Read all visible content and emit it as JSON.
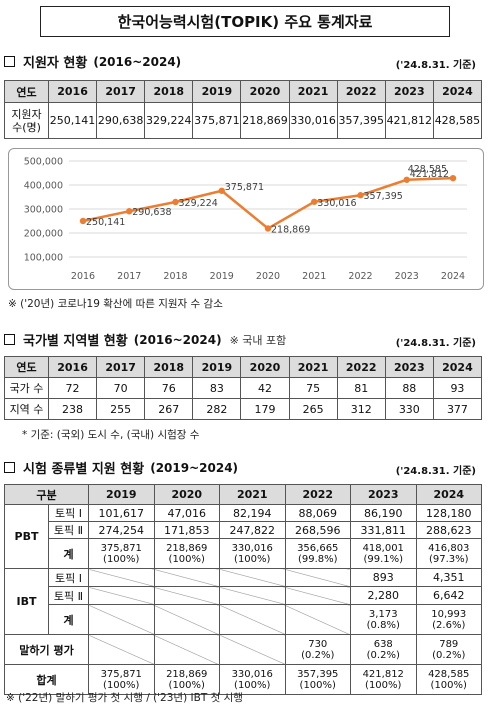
{
  "title": "한국어능력시험(TOPIK) 주요 통계자료",
  "section1": {
    "heading": "지원자 현황",
    "period": "(2016~2024)",
    "asof": "('24.8.31. 기준)",
    "table": {
      "header": [
        "연도",
        "2016",
        "2017",
        "2018",
        "2019",
        "2020",
        "2021",
        "2022",
        "2023",
        "2024"
      ],
      "row_label": "지원자 수(명)",
      "values": [
        "250,141",
        "290,638",
        "329,224",
        "375,871",
        "218,869",
        "330,016",
        "357,395",
        "421,812",
        "428,585"
      ]
    },
    "footnote": "※ ('20년) 코로나19 확산에 따른 지원자 수 감소"
  },
  "chart_data": {
    "type": "line",
    "categories": [
      "2016",
      "2017",
      "2018",
      "2019",
      "2020",
      "2021",
      "2022",
      "2023",
      "2024"
    ],
    "series": [
      {
        "values": [
          250141,
          290638,
          329224,
          375871,
          218869,
          330016,
          357395,
          421812,
          428585
        ]
      }
    ],
    "data_labels": [
      "250,141",
      "290,638",
      "329,224",
      "375,871",
      "218,869",
      "330,016",
      "357,395",
      "421,812",
      "428,585"
    ],
    "yticks": [
      "100,000",
      "200,000",
      "300,000",
      "400,000",
      "500,000"
    ],
    "ylim": [
      100000,
      500000
    ],
    "grid": true,
    "line_color": "#ED7D31"
  },
  "section2": {
    "heading": "국가별 지역별 현황",
    "period": "(2016~2024)",
    "note": "※ 국내 포함",
    "asof": "('24.8.31. 기준)",
    "table": {
      "header": [
        "연도",
        "2016",
        "2017",
        "2018",
        "2019",
        "2020",
        "2021",
        "2022",
        "2023",
        "2024"
      ],
      "rows": [
        {
          "label": "국가 수",
          "values": [
            "72",
            "70",
            "76",
            "83",
            "42",
            "75",
            "81",
            "88",
            "93"
          ]
        },
        {
          "label": "지역 수",
          "values": [
            "238",
            "255",
            "267",
            "282",
            "179",
            "265",
            "312",
            "330",
            "377"
          ]
        }
      ]
    },
    "footnote": "* 기준: (국외) 도시 수, (국내) 시험장 수"
  },
  "section3": {
    "heading": "시험 종류별 지원 현황",
    "period": "(2019~2024)",
    "asof": "('24.8.31. 기준)",
    "header": [
      "구분",
      "2019",
      "2020",
      "2021",
      "2022",
      "2023",
      "2024"
    ],
    "pbt": {
      "label": "PBT",
      "rows": [
        {
          "label": "토픽 Ⅰ",
          "values": [
            "101,617",
            "47,016",
            "82,194",
            "88,069",
            "86,190",
            "128,180"
          ]
        },
        {
          "label": "토픽 Ⅱ",
          "values": [
            "274,254",
            "171,853",
            "247,822",
            "268,596",
            "331,811",
            "288,623"
          ]
        }
      ],
      "total_label": "계",
      "totals": [
        "375,871",
        "218,869",
        "330,016",
        "356,665",
        "418,001",
        "416,803"
      ],
      "totals_pct": [
        "(100%)",
        "(100%)",
        "(100%)",
        "(99.8%)",
        "(99.1%)",
        "(97.3%)"
      ]
    },
    "ibt": {
      "label": "IBT",
      "rows": [
        {
          "label": "토픽 Ⅰ",
          "values": [
            "893",
            "4,351"
          ]
        },
        {
          "label": "토픽 Ⅱ",
          "values": [
            "2,280",
            "6,642"
          ]
        }
      ],
      "total_label": "계",
      "totals": [
        "3,173",
        "10,993"
      ],
      "totals_pct": [
        "(0.8%)",
        "(2.6%)"
      ]
    },
    "speaking": {
      "label": "말하기 평가",
      "values": [
        "730",
        "638",
        "789"
      ],
      "pct": [
        "(0.2%)",
        "(0.2%)",
        "(0.2%)"
      ]
    },
    "total": {
      "label": "합계",
      "values": [
        "375,871",
        "218,869",
        "330,016",
        "357,395",
        "421,812",
        "428,585"
      ],
      "pct": [
        "(100%)",
        "(100%)",
        "(100%)",
        "(100%)",
        "(100%)",
        "(100%)"
      ]
    },
    "footnote": "※ ('22년) 말하기 평가 첫 시행 / ('23년) IBT 첫 시행"
  }
}
